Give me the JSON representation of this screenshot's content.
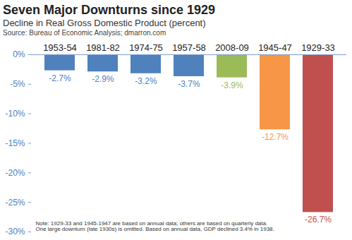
{
  "chart_data": {
    "type": "bar",
    "title": "Seven Major Downturns since 1929",
    "subtitle": "Decline in Real Gross Domestic Product (percent)",
    "source": "Source: Bureau of Economic Analysis; dmarron.com",
    "categories": [
      "1953-54",
      "1981-82",
      "1974-75",
      "1957-58",
      "2008-09",
      "1945-47",
      "1929-33"
    ],
    "values": [
      -2.7,
      -2.9,
      -3.2,
      -3.7,
      -3.9,
      -12.7,
      -26.7
    ],
    "value_labels": [
      "-2.7%",
      "-2.9%",
      "-3.2%",
      "-3.7%",
      "-3.9%",
      "-12.7%",
      "-26.7%"
    ],
    "colors": [
      "#4f81bd",
      "#4f81bd",
      "#4f81bd",
      "#4f81bd",
      "#9bbb59",
      "#f79646",
      "#c0504d"
    ],
    "data_labels": true,
    "grid": false,
    "ylim": [
      -30,
      0
    ],
    "yticks": [
      {
        "value": 0,
        "label": "0%"
      },
      {
        "value": -5,
        "label": "-5%"
      },
      {
        "value": -10,
        "label": "-10%"
      },
      {
        "value": -15,
        "label": "-15%"
      },
      {
        "value": -20,
        "label": "-20%"
      },
      {
        "value": -25,
        "label": "-25%"
      },
      {
        "value": -30,
        "label": "-30%"
      }
    ],
    "annotations": [
      "Note: 1929-33 and 1945-1947 are based on annual data; others are based on quarterly data.",
      "One large downturn (late 1930s) is omitted. Based on annual data, GDP declined 3.4% in 1938."
    ]
  }
}
